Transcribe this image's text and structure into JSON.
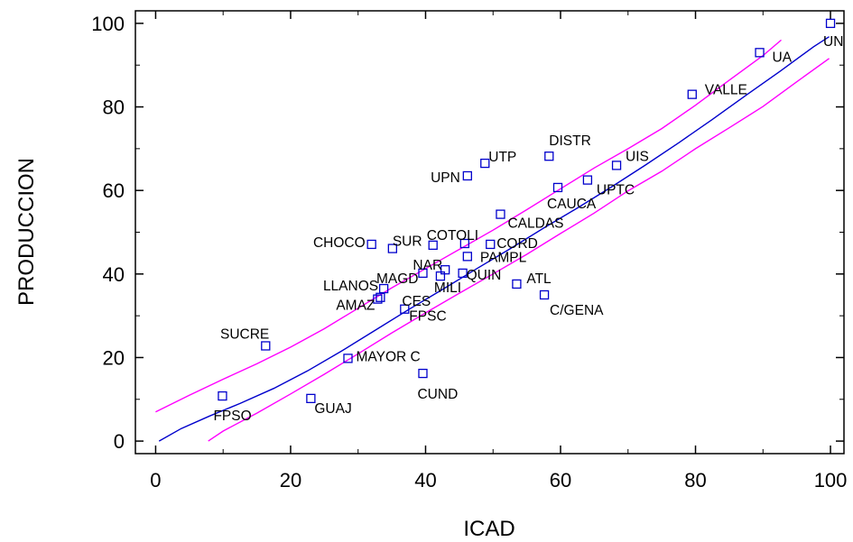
{
  "chart_data": {
    "type": "scatter",
    "title": "",
    "xlabel": "ICAD",
    "ylabel": "PRODUCCION",
    "xlim": [
      -3,
      102
    ],
    "ylim": [
      -3,
      103
    ],
    "xticks": [
      "0",
      "20",
      "40",
      "60",
      "80",
      "100"
    ],
    "yticks": [
      "0",
      "20",
      "40",
      "60",
      "80",
      "100"
    ],
    "xtick_values": [
      0,
      20,
      40,
      60,
      80,
      100
    ],
    "ytick_values": [
      0,
      20,
      40,
      60,
      80,
      100
    ],
    "grid": false,
    "marker_color": "#0000cc",
    "fit_line_color": "#0000cc",
    "band_color": "#ff00ff",
    "points": [
      {
        "label": "UN",
        "x": 100.0,
        "y": 100.0
      },
      {
        "label": "UA",
        "x": 89.5,
        "y": 93.0
      },
      {
        "label": "VALLE",
        "x": 79.5,
        "y": 83.0
      },
      {
        "label": "UIS",
        "x": 68.3,
        "y": 66.0
      },
      {
        "label": "DISTR",
        "x": 58.3,
        "y": 68.2
      },
      {
        "label": "UTP",
        "x": 48.8,
        "y": 66.5
      },
      {
        "label": "UPN",
        "x": 46.2,
        "y": 63.5
      },
      {
        "label": "UPTC",
        "x": 64.0,
        "y": 62.5
      },
      {
        "label": "CAUCA",
        "x": 59.6,
        "y": 60.7
      },
      {
        "label": "CALDAS",
        "x": 51.1,
        "y": 54.3
      },
      {
        "label": "CHOCO",
        "x": 32.0,
        "y": 47.1
      },
      {
        "label": "SUR",
        "x": 35.1,
        "y": 46.1
      },
      {
        "label": "COTOLI",
        "x": 41.1,
        "y": 46.9
      },
      {
        "label": "CORD",
        "x": 49.6,
        "y": 47.1
      },
      {
        "label": "",
        "x": 45.8,
        "y": 47.3
      },
      {
        "label": "PAMPL",
        "x": 46.2,
        "y": 44.2
      },
      {
        "label": "MAGD",
        "x": 39.6,
        "y": 40.2
      },
      {
        "label": "NAR",
        "x": 42.9,
        "y": 41.0
      },
      {
        "label": "MILI",
        "x": 42.2,
        "y": 39.5
      },
      {
        "label": "QUIN",
        "x": 45.5,
        "y": 40.2
      },
      {
        "label": "ATL",
        "x": 53.5,
        "y": 37.6
      },
      {
        "label": "LLANOS",
        "x": 33.8,
        "y": 36.5
      },
      {
        "label": "CES",
        "x": 33.3,
        "y": 34.4
      },
      {
        "label": "AMAZ",
        "x": 32.9,
        "y": 34.0
      },
      {
        "label": "FPSC",
        "x": 36.9,
        "y": 31.6
      },
      {
        "label": "C/GENA",
        "x": 57.6,
        "y": 35.0
      },
      {
        "label": "SUCRE",
        "x": 16.3,
        "y": 22.8
      },
      {
        "label": "MAYOR C",
        "x": 28.5,
        "y": 19.8
      },
      {
        "label": "CUND",
        "x": 39.6,
        "y": 16.2
      },
      {
        "label": "FPSO",
        "x": 9.9,
        "y": 10.8
      },
      {
        "label": "GUAJ",
        "x": 23.0,
        "y": 10.2
      }
    ],
    "fit_line": {
      "x": [
        0.5,
        3.8,
        8.0,
        12.5,
        17.5,
        22.5,
        27.5,
        32.5,
        37.5,
        42.5,
        47.5,
        52.5,
        57.5,
        62.5,
        67.5,
        72.5,
        77.5,
        82.5,
        87.5,
        92.5,
        97.5,
        99.8
      ],
      "y": [
        0.0,
        3.0,
        6.0,
        9.0,
        12.6,
        16.8,
        21.5,
        26.5,
        31.5,
        36.3,
        41.2,
        46.0,
        51.0,
        55.8,
        60.8,
        66.0,
        71.4,
        77.0,
        82.8,
        88.5,
        94.4,
        96.8
      ]
    },
    "upper_band": {
      "x": [
        0.0,
        5.0,
        10.0,
        15.0,
        20.0,
        25.0,
        30.0,
        35.0,
        40.0,
        45.0,
        50.0,
        55.0,
        60.0,
        65.0,
        70.0,
        75.0,
        80.0,
        85.0,
        90.0,
        92.7
      ],
      "y": [
        7.0,
        11.0,
        14.8,
        18.5,
        22.5,
        26.9,
        31.8,
        36.7,
        41.3,
        45.9,
        50.5,
        55.4,
        60.4,
        65.4,
        70.0,
        74.8,
        80.4,
        86.4,
        92.3,
        96.0
      ]
    },
    "lower_band": {
      "x": [
        7.8,
        10.0,
        15.0,
        20.0,
        25.0,
        30.0,
        35.0,
        40.0,
        45.0,
        50.0,
        55.0,
        60.0,
        65.0,
        70.0,
        75.0,
        80.0,
        85.0,
        90.0,
        95.0,
        99.8
      ],
      "y": [
        0.0,
        2.4,
        6.7,
        11.3,
        16.0,
        20.9,
        25.9,
        30.7,
        35.4,
        40.0,
        44.7,
        49.7,
        54.6,
        59.9,
        64.6,
        70.0,
        75.0,
        80.1,
        86.0,
        91.6
      ]
    }
  }
}
